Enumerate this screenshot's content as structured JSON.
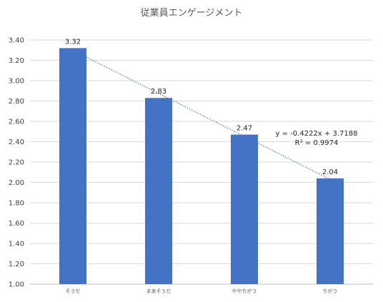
{
  "chart_data": {
    "type": "bar",
    "title": "従業員エンゲージメント",
    "xlabel": "",
    "ylabel": "",
    "categories": [
      "そうだ",
      "まあそうだ",
      "ややちがう",
      "ちがう"
    ],
    "series": [
      {
        "values": [
          3.32,
          2.83,
          2.47,
          2.04
        ]
      }
    ],
    "data_labels": [
      "3.32",
      "2.83",
      "2.47",
      "2.04"
    ],
    "ylim": [
      1.0,
      3.4
    ],
    "yticks": [
      "1.00",
      "1.20",
      "1.40",
      "1.60",
      "1.80",
      "2.00",
      "2.20",
      "2.40",
      "2.60",
      "2.80",
      "3.00",
      "3.20",
      "3.40"
    ],
    "grid": true,
    "legend": "none",
    "trendline": {
      "type": "linear",
      "slope": -0.4222,
      "intercept": 3.7188,
      "equation": "y = -0.4222x + 3.7188",
      "r_squared": "R² = 0.9974"
    },
    "colors": {
      "bar": "#4472C4",
      "trendline": "#4472C4",
      "grid": "#D9D9D9",
      "axis": "#BFBFBF"
    }
  }
}
